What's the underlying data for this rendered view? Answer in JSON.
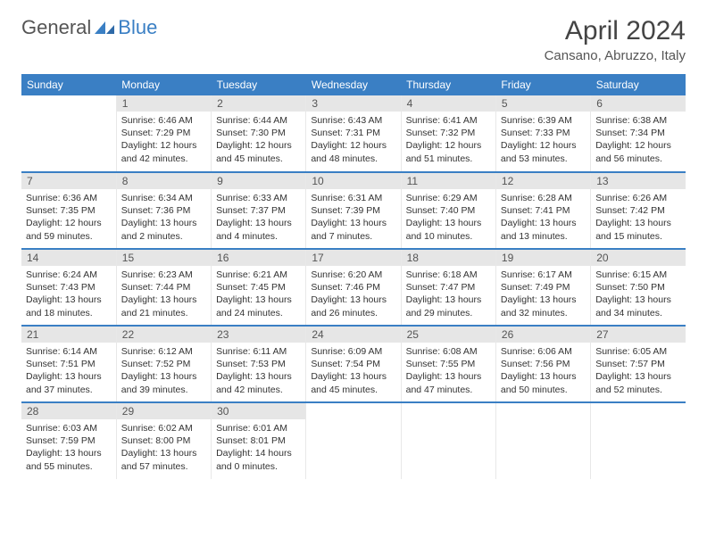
{
  "logo": {
    "part1": "General",
    "part2": "Blue"
  },
  "title": "April 2024",
  "location": "Cansano, Abruzzo, Italy",
  "colors": {
    "brand_blue": "#3a7fc4",
    "header_bg": "#3a7fc4",
    "header_text": "#ffffff",
    "daynum_bg": "#e6e6e6",
    "daynum_text": "#555555",
    "body_text": "#333333",
    "cell_border": "#e8e8e8"
  },
  "weekdays": [
    "Sunday",
    "Monday",
    "Tuesday",
    "Wednesday",
    "Thursday",
    "Friday",
    "Saturday"
  ],
  "weeks": [
    [
      null,
      {
        "n": "1",
        "sr": "Sunrise: 6:46 AM",
        "ss": "Sunset: 7:29 PM",
        "dl1": "Daylight: 12 hours",
        "dl2": "and 42 minutes."
      },
      {
        "n": "2",
        "sr": "Sunrise: 6:44 AM",
        "ss": "Sunset: 7:30 PM",
        "dl1": "Daylight: 12 hours",
        "dl2": "and 45 minutes."
      },
      {
        "n": "3",
        "sr": "Sunrise: 6:43 AM",
        "ss": "Sunset: 7:31 PM",
        "dl1": "Daylight: 12 hours",
        "dl2": "and 48 minutes."
      },
      {
        "n": "4",
        "sr": "Sunrise: 6:41 AM",
        "ss": "Sunset: 7:32 PM",
        "dl1": "Daylight: 12 hours",
        "dl2": "and 51 minutes."
      },
      {
        "n": "5",
        "sr": "Sunrise: 6:39 AM",
        "ss": "Sunset: 7:33 PM",
        "dl1": "Daylight: 12 hours",
        "dl2": "and 53 minutes."
      },
      {
        "n": "6",
        "sr": "Sunrise: 6:38 AM",
        "ss": "Sunset: 7:34 PM",
        "dl1": "Daylight: 12 hours",
        "dl2": "and 56 minutes."
      }
    ],
    [
      {
        "n": "7",
        "sr": "Sunrise: 6:36 AM",
        "ss": "Sunset: 7:35 PM",
        "dl1": "Daylight: 12 hours",
        "dl2": "and 59 minutes."
      },
      {
        "n": "8",
        "sr": "Sunrise: 6:34 AM",
        "ss": "Sunset: 7:36 PM",
        "dl1": "Daylight: 13 hours",
        "dl2": "and 2 minutes."
      },
      {
        "n": "9",
        "sr": "Sunrise: 6:33 AM",
        "ss": "Sunset: 7:37 PM",
        "dl1": "Daylight: 13 hours",
        "dl2": "and 4 minutes."
      },
      {
        "n": "10",
        "sr": "Sunrise: 6:31 AM",
        "ss": "Sunset: 7:39 PM",
        "dl1": "Daylight: 13 hours",
        "dl2": "and 7 minutes."
      },
      {
        "n": "11",
        "sr": "Sunrise: 6:29 AM",
        "ss": "Sunset: 7:40 PM",
        "dl1": "Daylight: 13 hours",
        "dl2": "and 10 minutes."
      },
      {
        "n": "12",
        "sr": "Sunrise: 6:28 AM",
        "ss": "Sunset: 7:41 PM",
        "dl1": "Daylight: 13 hours",
        "dl2": "and 13 minutes."
      },
      {
        "n": "13",
        "sr": "Sunrise: 6:26 AM",
        "ss": "Sunset: 7:42 PM",
        "dl1": "Daylight: 13 hours",
        "dl2": "and 15 minutes."
      }
    ],
    [
      {
        "n": "14",
        "sr": "Sunrise: 6:24 AM",
        "ss": "Sunset: 7:43 PM",
        "dl1": "Daylight: 13 hours",
        "dl2": "and 18 minutes."
      },
      {
        "n": "15",
        "sr": "Sunrise: 6:23 AM",
        "ss": "Sunset: 7:44 PM",
        "dl1": "Daylight: 13 hours",
        "dl2": "and 21 minutes."
      },
      {
        "n": "16",
        "sr": "Sunrise: 6:21 AM",
        "ss": "Sunset: 7:45 PM",
        "dl1": "Daylight: 13 hours",
        "dl2": "and 24 minutes."
      },
      {
        "n": "17",
        "sr": "Sunrise: 6:20 AM",
        "ss": "Sunset: 7:46 PM",
        "dl1": "Daylight: 13 hours",
        "dl2": "and 26 minutes."
      },
      {
        "n": "18",
        "sr": "Sunrise: 6:18 AM",
        "ss": "Sunset: 7:47 PM",
        "dl1": "Daylight: 13 hours",
        "dl2": "and 29 minutes."
      },
      {
        "n": "19",
        "sr": "Sunrise: 6:17 AM",
        "ss": "Sunset: 7:49 PM",
        "dl1": "Daylight: 13 hours",
        "dl2": "and 32 minutes."
      },
      {
        "n": "20",
        "sr": "Sunrise: 6:15 AM",
        "ss": "Sunset: 7:50 PM",
        "dl1": "Daylight: 13 hours",
        "dl2": "and 34 minutes."
      }
    ],
    [
      {
        "n": "21",
        "sr": "Sunrise: 6:14 AM",
        "ss": "Sunset: 7:51 PM",
        "dl1": "Daylight: 13 hours",
        "dl2": "and 37 minutes."
      },
      {
        "n": "22",
        "sr": "Sunrise: 6:12 AM",
        "ss": "Sunset: 7:52 PM",
        "dl1": "Daylight: 13 hours",
        "dl2": "and 39 minutes."
      },
      {
        "n": "23",
        "sr": "Sunrise: 6:11 AM",
        "ss": "Sunset: 7:53 PM",
        "dl1": "Daylight: 13 hours",
        "dl2": "and 42 minutes."
      },
      {
        "n": "24",
        "sr": "Sunrise: 6:09 AM",
        "ss": "Sunset: 7:54 PM",
        "dl1": "Daylight: 13 hours",
        "dl2": "and 45 minutes."
      },
      {
        "n": "25",
        "sr": "Sunrise: 6:08 AM",
        "ss": "Sunset: 7:55 PM",
        "dl1": "Daylight: 13 hours",
        "dl2": "and 47 minutes."
      },
      {
        "n": "26",
        "sr": "Sunrise: 6:06 AM",
        "ss": "Sunset: 7:56 PM",
        "dl1": "Daylight: 13 hours",
        "dl2": "and 50 minutes."
      },
      {
        "n": "27",
        "sr": "Sunrise: 6:05 AM",
        "ss": "Sunset: 7:57 PM",
        "dl1": "Daylight: 13 hours",
        "dl2": "and 52 minutes."
      }
    ],
    [
      {
        "n": "28",
        "sr": "Sunrise: 6:03 AM",
        "ss": "Sunset: 7:59 PM",
        "dl1": "Daylight: 13 hours",
        "dl2": "and 55 minutes."
      },
      {
        "n": "29",
        "sr": "Sunrise: 6:02 AM",
        "ss": "Sunset: 8:00 PM",
        "dl1": "Daylight: 13 hours",
        "dl2": "and 57 minutes."
      },
      {
        "n": "30",
        "sr": "Sunrise: 6:01 AM",
        "ss": "Sunset: 8:01 PM",
        "dl1": "Daylight: 14 hours",
        "dl2": "and 0 minutes."
      },
      null,
      null,
      null,
      null
    ]
  ]
}
